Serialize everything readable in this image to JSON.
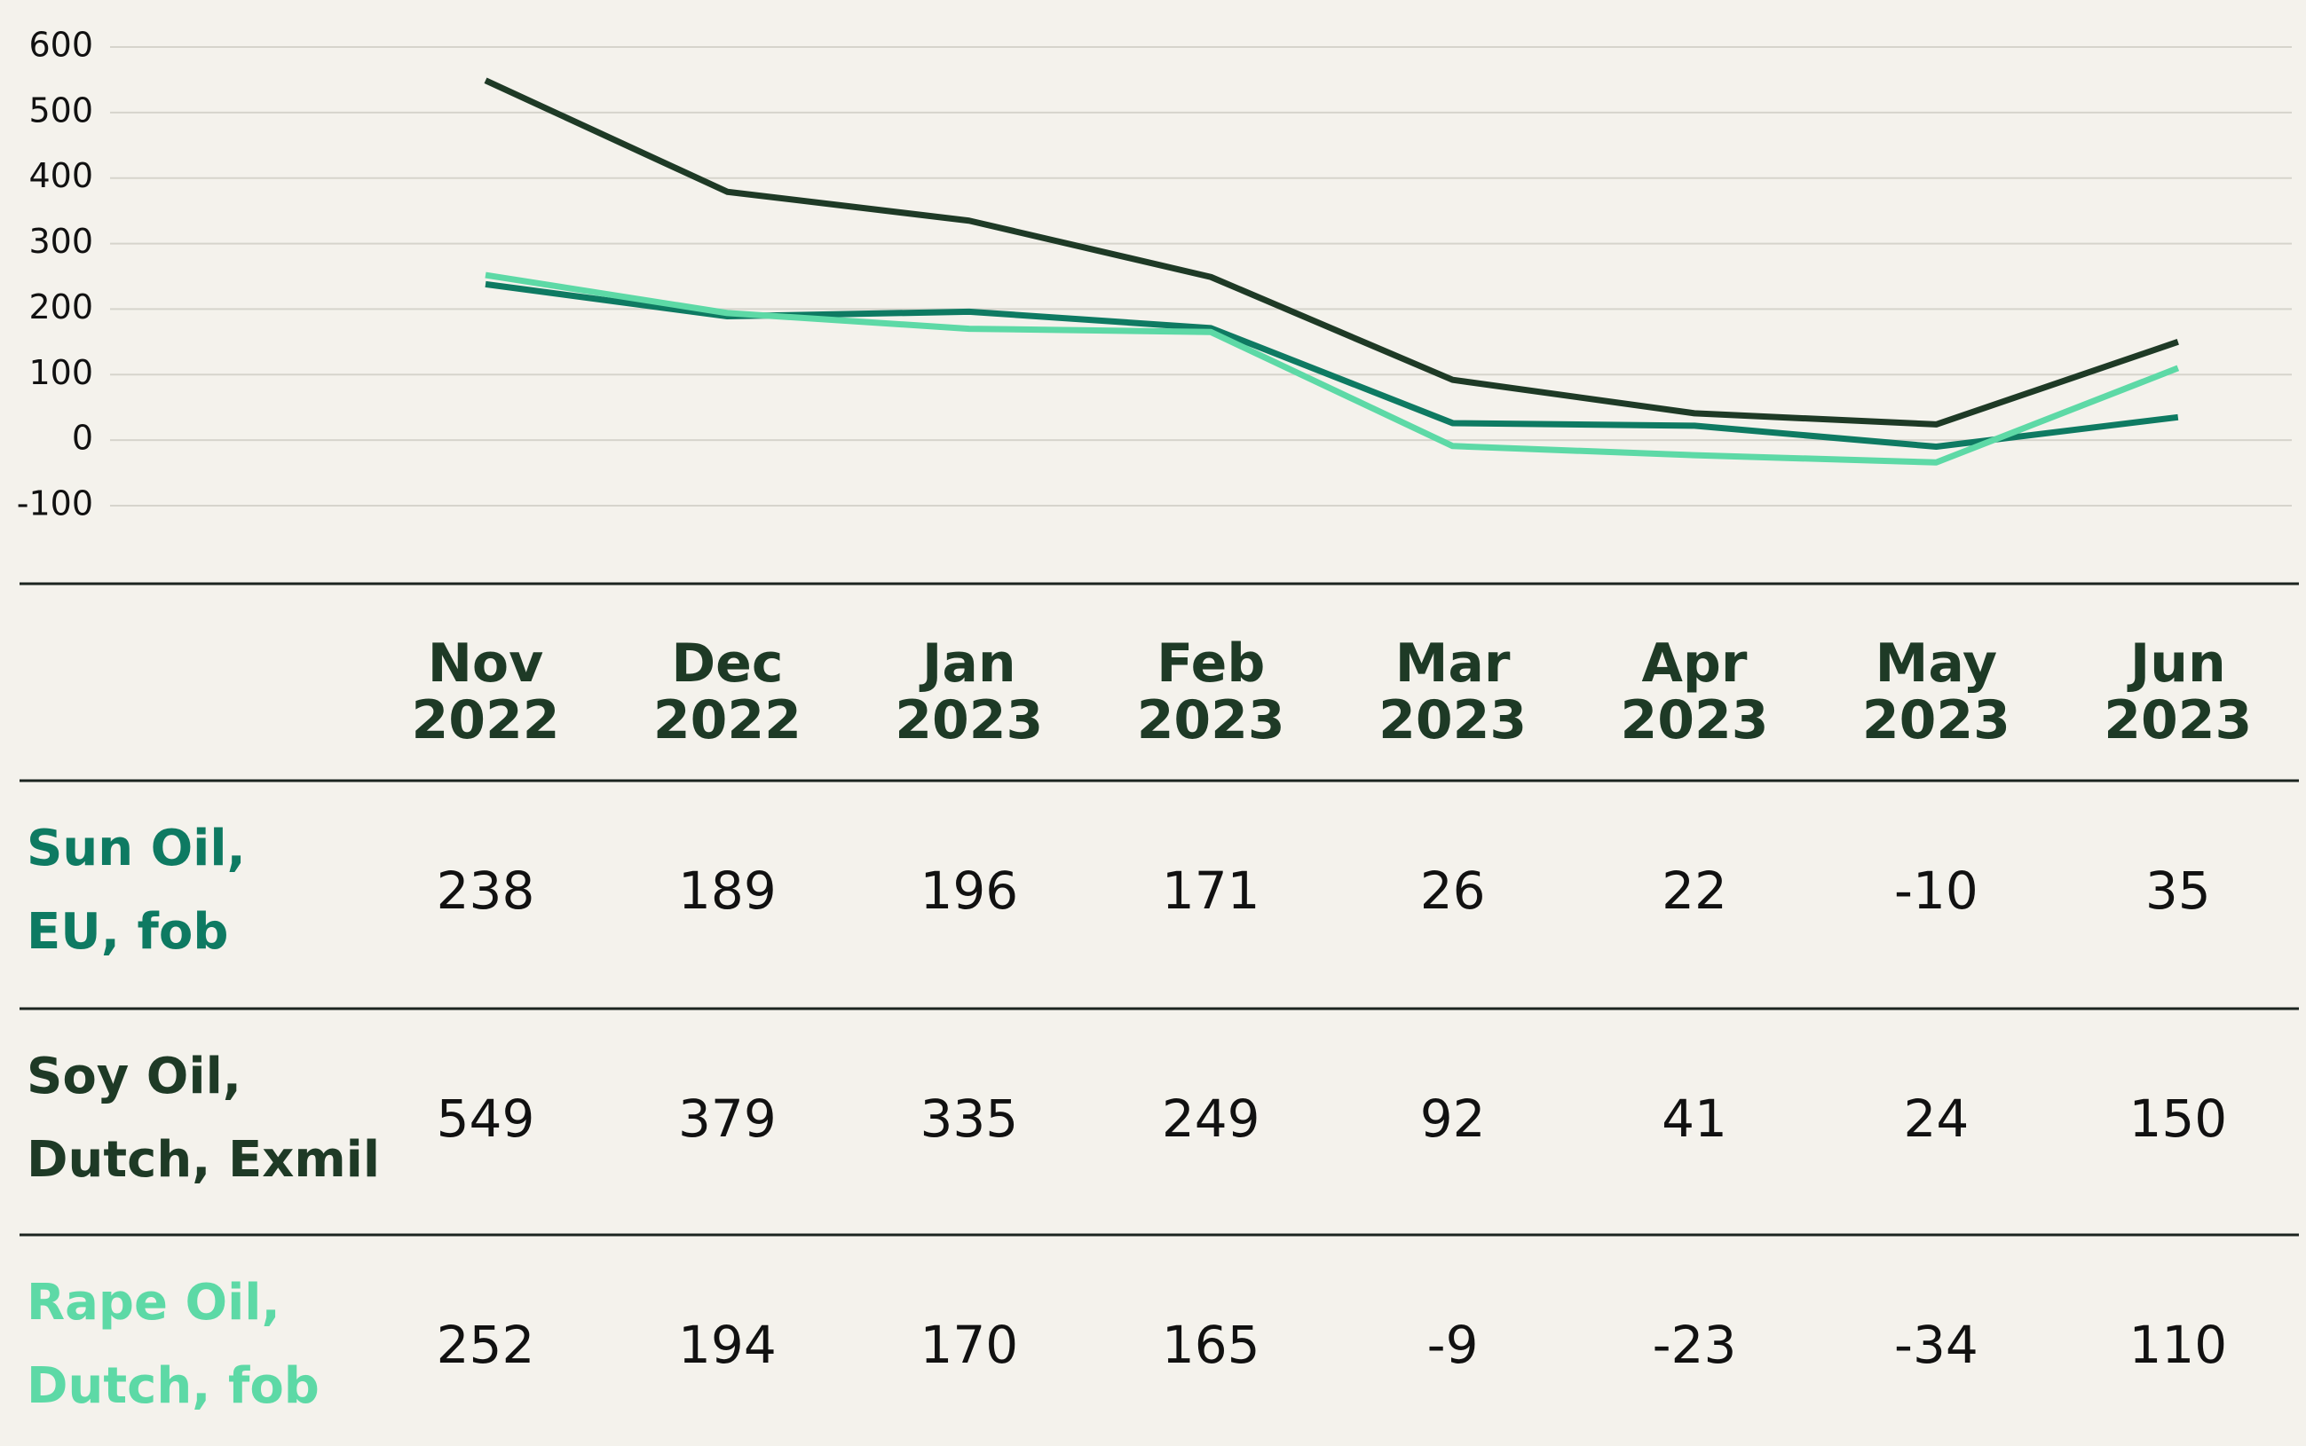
{
  "chart_data": {
    "type": "line",
    "categories": [
      "Nov 2022",
      "Dec 2022",
      "Jan 2023",
      "Feb 2023",
      "Mar 2023",
      "Apr 2023",
      "May 2023",
      "Jun 2023"
    ],
    "series": [
      {
        "name": "Sun Oil,\nEU, fob",
        "color": "#0e7a62",
        "values": [
          238,
          189,
          196,
          171,
          26,
          22,
          -10,
          35
        ]
      },
      {
        "name": "Soy Oil,\nDutch, Exmil",
        "color": "#1e3a26",
        "values": [
          549,
          379,
          335,
          249,
          92,
          41,
          24,
          150
        ]
      },
      {
        "name": "Rape Oil,\nDutch, fob",
        "color": "#5dd9a6",
        "values": [
          252,
          194,
          170,
          165,
          -9,
          -23,
          -34,
          110
        ]
      }
    ],
    "ylim": [
      -100,
      600
    ],
    "yticks": [
      -100,
      0,
      100,
      200,
      300,
      400,
      500,
      600
    ],
    "grid": true
  }
}
